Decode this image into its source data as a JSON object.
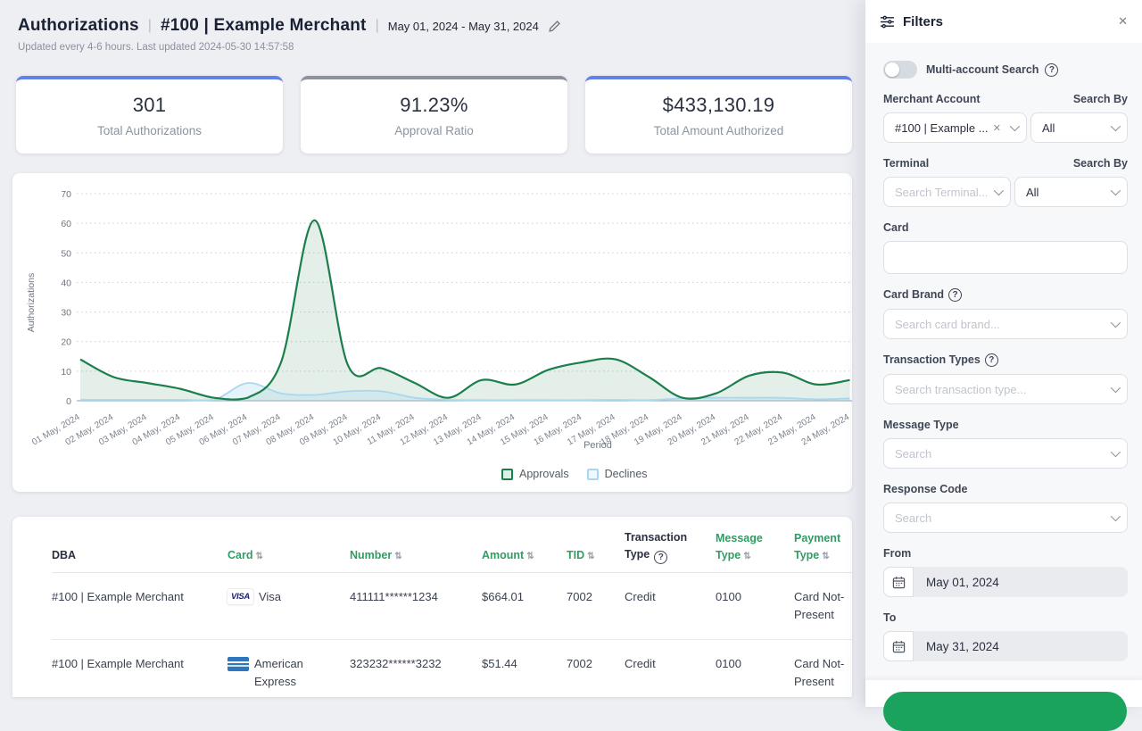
{
  "header": {
    "title": "Authorizations",
    "separator": "|",
    "merchant": "#100 | Example Merchant",
    "date_range": "May 01, 2024 - May 31, 2024",
    "subtitle": "Updated every 4-6 hours. Last updated 2024-05-30 14:57:58"
  },
  "stats": [
    {
      "value": "301",
      "label": "Total Authorizations",
      "accent": "#6282ea"
    },
    {
      "value": "91.23%",
      "label": "Approval Ratio",
      "accent": "#8e929b"
    },
    {
      "value": "$433,130.19",
      "label": "Total Amount Authorized",
      "accent": "#6282ea"
    }
  ],
  "chart_data": {
    "type": "area",
    "x": [
      "01 May, 2024",
      "02 May, 2024",
      "03 May, 2024",
      "04 May, 2024",
      "05 May, 2024",
      "06 May, 2024",
      "07 May, 2024",
      "08 May, 2024",
      "09 May, 2024",
      "10 May, 2024",
      "11 May, 2024",
      "12 May, 2024",
      "13 May, 2024",
      "14 May, 2024",
      "15 May, 2024",
      "16 May, 2024",
      "17 May, 2024",
      "18 May, 2024",
      "19 May, 2024",
      "20 May, 2024",
      "21 May, 2024",
      "22 May, 2024",
      "23 May, 2024",
      "24 May, 2024"
    ],
    "series": [
      {
        "name": "Approvals",
        "color": "#1b7f4c",
        "fill": "rgba(31,127,76,0.12)",
        "values": [
          14,
          8,
          6,
          4,
          1,
          1,
          13,
          61,
          12,
          11,
          6,
          1,
          7,
          5.5,
          10.5,
          13,
          14,
          8,
          1,
          2.5,
          8.5,
          9.5,
          5.5,
          7
        ]
      },
      {
        "name": "Declines",
        "color": "#a8d7f2",
        "fill": "rgba(168,215,242,0.30)",
        "values": [
          0.3,
          0.3,
          0.3,
          0.3,
          0.3,
          6,
          2.5,
          2,
          3.2,
          3.2,
          1,
          0.3,
          0.2,
          0.2,
          0.2,
          0.2,
          0.3,
          0.2,
          0.8,
          1,
          1,
          1,
          0.5,
          0.8
        ]
      }
    ],
    "ylabel": "Authorizations",
    "xlabel": "Period",
    "ylim": [
      0,
      70
    ],
    "yticks": [
      0,
      10,
      20,
      30,
      40,
      50,
      60,
      70
    ],
    "grid": "dotted-horizontal",
    "legend_position": "bottom"
  },
  "table": {
    "columns": [
      {
        "label": "DBA",
        "sortable": false
      },
      {
        "label": "Card",
        "sortable": true
      },
      {
        "label": "Number",
        "sortable": true
      },
      {
        "label": "Amount",
        "sortable": true
      },
      {
        "label": "TID",
        "sortable": true
      },
      {
        "label": "Transaction Type",
        "sortable": false,
        "help": true
      },
      {
        "label": "Message Type",
        "sortable": true
      },
      {
        "label": "Payment Type",
        "sortable": true
      }
    ],
    "rows": [
      {
        "dba": "#100 | Example Merchant",
        "card": "Visa",
        "card_icon": "visa-badge",
        "number": "411111******1234",
        "amount": "$664.01",
        "tid": "7002",
        "transaction_type": "Credit",
        "message_type": "0100",
        "payment_type": "Card Not-Present"
      },
      {
        "dba": "#100 | Example Merchant",
        "card": "American Express",
        "card_icon": "amex-badge",
        "number": "323232******3232",
        "amount": "$51.44",
        "tid": "7002",
        "transaction_type": "Credit",
        "message_type": "0100",
        "payment_type": "Card Not-Present"
      }
    ]
  },
  "filters_panel": {
    "title": "Filters",
    "multi_account": {
      "label": "Multi-account Search",
      "enabled": false
    },
    "merchant_account": {
      "label": "Merchant Account",
      "search_by_label": "Search By",
      "value": "#100 | Example ...",
      "search_by_value": "All"
    },
    "terminal": {
      "label": "Terminal",
      "search_by_label": "Search By",
      "placeholder": "Search Terminal...",
      "search_by_value": "All"
    },
    "card": {
      "label": "Card",
      "value": ""
    },
    "card_brand": {
      "label": "Card Brand",
      "placeholder": "Search card brand..."
    },
    "transaction_types": {
      "label": "Transaction Types",
      "placeholder": "Search transaction type..."
    },
    "message_type": {
      "label": "Message Type",
      "placeholder": "Search"
    },
    "response_code": {
      "label": "Response Code",
      "placeholder": "Search"
    },
    "from": {
      "label": "From",
      "value": "May 01, 2024"
    },
    "to": {
      "label": "To",
      "value": "May 31, 2024"
    }
  },
  "icons": {
    "sort": "⇅",
    "help": "?",
    "close": "✕",
    "visa_text": "VISA"
  },
  "colors": {
    "accent_blue": "#6282ea",
    "accent_gray": "#8e929b",
    "table_header_green": "#2e9e63",
    "approvals_green": "#1b7f4c",
    "declines_blue": "#a8d7f2",
    "apply_button_green": "#19a35d"
  }
}
